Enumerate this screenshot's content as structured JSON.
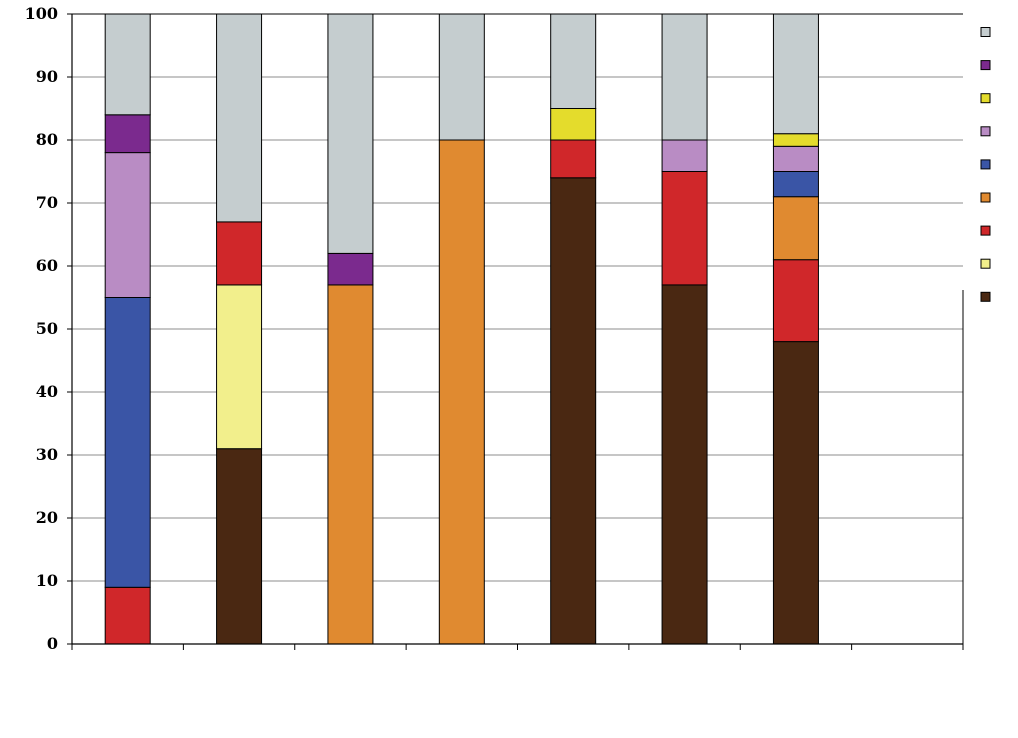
{
  "chart_data": {
    "type": "bar",
    "stacked": true,
    "categories": [
      "",
      "",
      "",
      "",
      "",
      "",
      "",
      ""
    ],
    "ylim": [
      0,
      100
    ],
    "yticks": [
      "0",
      "10",
      "20",
      "30",
      "40",
      "50",
      "60",
      "70",
      "80",
      "90",
      "100"
    ],
    "grid": true,
    "legend_position": "right",
    "title": "",
    "xlabel": "",
    "ylabel": "",
    "series": [
      {
        "color": "#4a2812",
        "values": [
          0,
          31,
          0,
          0,
          74,
          57,
          48,
          0
        ]
      },
      {
        "color": "#f2ef8c",
        "values": [
          0,
          26,
          0,
          0,
          0,
          0,
          0,
          0
        ]
      },
      {
        "color": "#d0272a",
        "values": [
          9,
          10,
          0,
          0,
          6,
          18,
          13,
          0
        ]
      },
      {
        "color": "#e08a30",
        "values": [
          0,
          0,
          57,
          80,
          0,
          0,
          10,
          0
        ]
      },
      {
        "color": "#3a55a6",
        "values": [
          46,
          0,
          0,
          0,
          0,
          0,
          4,
          0
        ]
      },
      {
        "color": "#b98cc4",
        "values": [
          23,
          0,
          0,
          0,
          0,
          5,
          4,
          0
        ]
      },
      {
        "color": "#e4dc2c",
        "values": [
          0,
          0,
          0,
          0,
          5,
          0,
          2,
          0
        ]
      },
      {
        "color": "#7b2a8e",
        "values": [
          6,
          0,
          5,
          0,
          0,
          0,
          0,
          0
        ]
      },
      {
        "color": "#c5cdcf",
        "values": [
          16,
          33,
          38,
          20,
          15,
          20,
          19,
          0
        ]
      }
    ]
  }
}
